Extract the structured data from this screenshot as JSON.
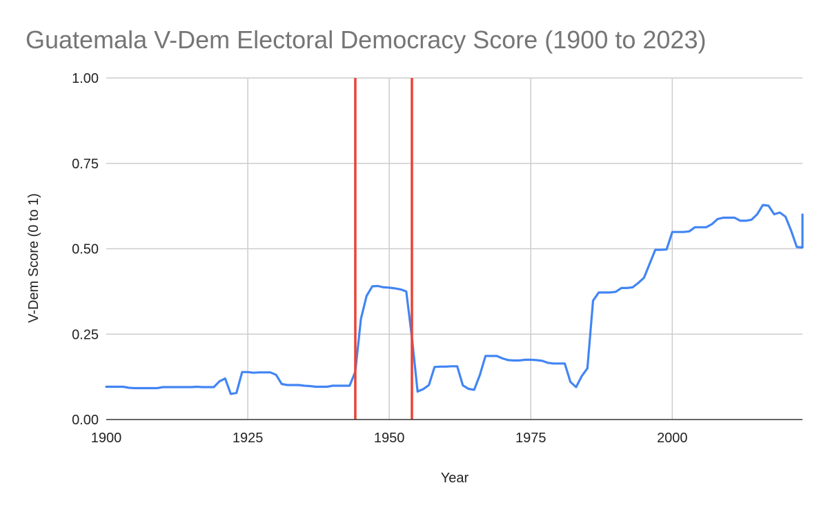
{
  "chart_data": {
    "type": "line",
    "title": "Guatemala V-Dem Electoral Democracy Score (1900 to 2023)",
    "xlabel": "Year",
    "ylabel": "V-Dem Score (0 to 1)",
    "xlim": [
      1900,
      2023
    ],
    "ylim": [
      0,
      1
    ],
    "x_ticks": [
      1900,
      1925,
      1950,
      1975,
      2000
    ],
    "x_tick_labels": [
      "1900",
      "1925",
      "1950",
      "1975",
      "2000"
    ],
    "y_ticks": [
      0,
      0.25,
      0.5,
      0.75,
      1
    ],
    "y_tick_labels": [
      "0.00",
      "0.25",
      "0.50",
      "0.75",
      "1.00"
    ],
    "grid": true,
    "line_color": "#4285f4",
    "marker_color": "#ea4335",
    "vertical_markers": [
      1944,
      1954
    ],
    "series": [
      {
        "x": [
          1900,
          1901,
          1902,
          1903,
          1904,
          1905,
          1906,
          1907,
          1908,
          1909,
          1910,
          1911,
          1912,
          1913,
          1914,
          1915,
          1916,
          1917,
          1918,
          1919,
          1920,
          1921,
          1922,
          1923,
          1924,
          1925,
          1926,
          1927,
          1928,
          1929,
          1930,
          1931,
          1932,
          1933,
          1934,
          1935,
          1936,
          1937,
          1938,
          1939,
          1940,
          1941,
          1942,
          1943,
          1944,
          1945,
          1946,
          1947,
          1948,
          1949,
          1950,
          1951,
          1952,
          1953,
          1954,
          1955,
          1956,
          1957,
          1958,
          1959,
          1960,
          1961,
          1962,
          1963,
          1964,
          1965,
          1966,
          1967,
          1968,
          1969,
          1970,
          1971,
          1972,
          1973,
          1974,
          1975,
          1976,
          1977,
          1978,
          1979,
          1980,
          1981,
          1982,
          1983,
          1984,
          1985,
          1986,
          1987,
          1988,
          1989,
          1990,
          1991,
          1992,
          1993,
          1994,
          1995,
          1996,
          1997,
          1998,
          1999,
          2000,
          2001,
          2002,
          2003,
          2004,
          2005,
          2006,
          2007,
          2008,
          2009,
          2010,
          2011,
          2012,
          2013,
          2014,
          2015,
          2016,
          2017,
          2018,
          2019,
          2020,
          2021,
          2022,
          2023
        ],
        "y": [
          0.096,
          0.096,
          0.096,
          0.096,
          0.093,
          0.092,
          0.092,
          0.092,
          0.092,
          0.092,
          0.095,
          0.095,
          0.095,
          0.095,
          0.095,
          0.095,
          0.096,
          0.095,
          0.095,
          0.095,
          0.112,
          0.12,
          0.075,
          0.078,
          0.139,
          0.139,
          0.137,
          0.138,
          0.138,
          0.138,
          0.131,
          0.104,
          0.101,
          0.101,
          0.101,
          0.099,
          0.098,
          0.096,
          0.096,
          0.096,
          0.099,
          0.099,
          0.099,
          0.099,
          0.14,
          0.295,
          0.362,
          0.39,
          0.391,
          0.387,
          0.386,
          0.384,
          0.381,
          0.375,
          0.24,
          0.082,
          0.089,
          0.101,
          0.154,
          0.155,
          0.155,
          0.156,
          0.156,
          0.1,
          0.09,
          0.087,
          0.13,
          0.186,
          0.186,
          0.186,
          0.179,
          0.174,
          0.173,
          0.173,
          0.175,
          0.175,
          0.174,
          0.172,
          0.166,
          0.164,
          0.164,
          0.164,
          0.11,
          0.095,
          0.127,
          0.15,
          0.348,
          0.372,
          0.372,
          0.372,
          0.374,
          0.385,
          0.385,
          0.387,
          0.4,
          0.415,
          0.456,
          0.497,
          0.497,
          0.498,
          0.549,
          0.549,
          0.549,
          0.551,
          0.563,
          0.563,
          0.563,
          0.572,
          0.587,
          0.591,
          0.591,
          0.591,
          0.582,
          0.582,
          0.585,
          0.601,
          0.628,
          0.626,
          0.601,
          0.606,
          0.594,
          0.553,
          0.505,
          0.504
        ]
      },
      {
        "x": [
          2023
        ],
        "y": [
          0.6
        ]
      }
    ]
  }
}
